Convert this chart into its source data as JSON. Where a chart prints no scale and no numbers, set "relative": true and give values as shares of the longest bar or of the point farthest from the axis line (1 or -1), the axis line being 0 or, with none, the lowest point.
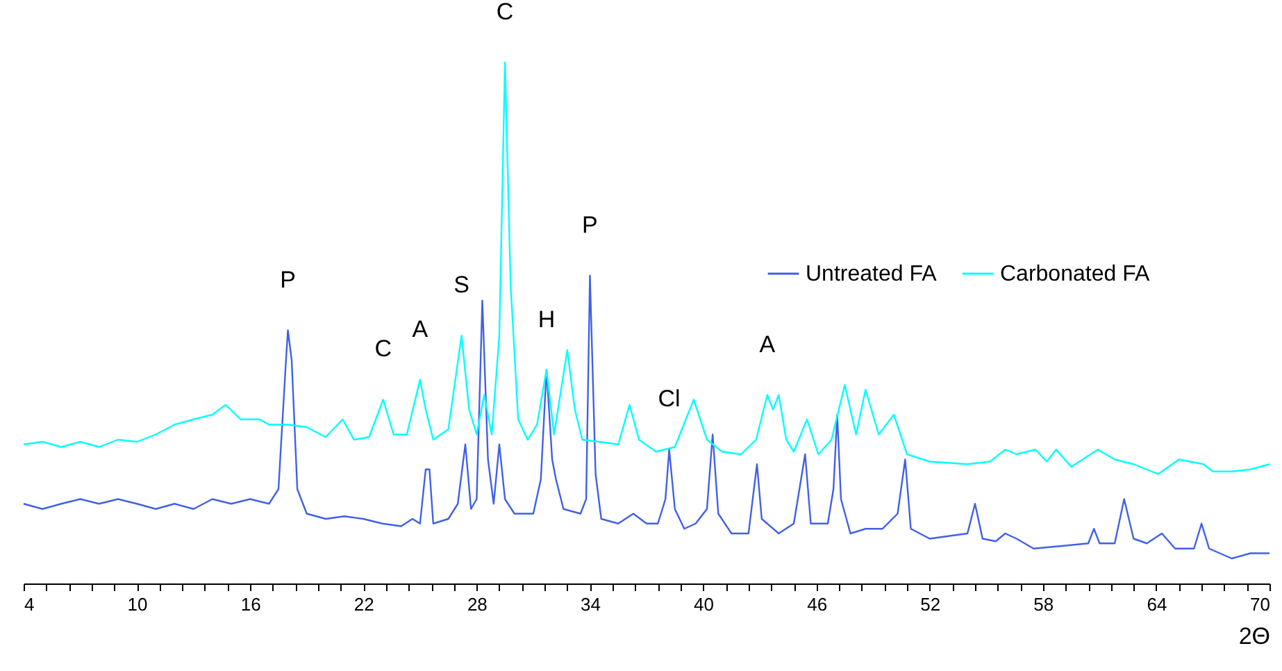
{
  "chart_data": {
    "type": "line",
    "relative": true,
    "xlabel": "2Θ",
    "xlim": [
      4,
      70
    ],
    "xticks": [
      4,
      {
        "value": 5.2,
        "label": null
      },
      {
        "value": 6.4,
        "label": null
      },
      {
        "value": 7.6,
        "label": null
      },
      {
        "value": 8.8,
        "label": null
      },
      10,
      {
        "value": 11.2,
        "label": null
      },
      {
        "value": 12.4,
        "label": null
      },
      {
        "value": 13.6,
        "label": null
      },
      {
        "value": 14.8,
        "label": null
      },
      16,
      {
        "value": 17.2,
        "label": null
      },
      {
        "value": 18.4,
        "label": null
      },
      {
        "value": 19.6,
        "label": null
      },
      {
        "value": 20.8,
        "label": null
      },
      22,
      {
        "value": 23.2,
        "label": null
      },
      {
        "value": 24.4,
        "label": null
      },
      {
        "value": 25.6,
        "label": null
      },
      {
        "value": 26.8,
        "label": null
      },
      28,
      {
        "value": 29.2,
        "label": null
      },
      {
        "value": 30.4,
        "label": null
      },
      {
        "value": 31.6,
        "label": null
      },
      {
        "value": 32.8,
        "label": null
      },
      34,
      {
        "value": 35.2,
        "label": null
      },
      {
        "value": 36.4,
        "label": null
      },
      {
        "value": 37.6,
        "label": null
      },
      {
        "value": 38.8,
        "label": null
      },
      40,
      {
        "value": 41.2,
        "label": null
      },
      {
        "value": 42.4,
        "label": null
      },
      {
        "value": 43.6,
        "label": null
      },
      {
        "value": 44.8,
        "label": null
      },
      46,
      {
        "value": 47.2,
        "label": null
      },
      {
        "value": 48.4,
        "label": null
      },
      {
        "value": 49.6,
        "label": null
      },
      {
        "value": 50.8,
        "label": null
      },
      52,
      {
        "value": 53.2,
        "label": null
      },
      {
        "value": 54.4,
        "label": null
      },
      {
        "value": 55.6,
        "label": null
      },
      {
        "value": 56.8,
        "label": null
      },
      58,
      {
        "value": 59.2,
        "label": null
      },
      {
        "value": 60.4,
        "label": null
      },
      {
        "value": 61.6,
        "label": null
      },
      {
        "value": 62.8,
        "label": null
      },
      64,
      {
        "value": 65.2,
        "label": null
      },
      {
        "value": 66.4,
        "label": null
      },
      {
        "value": 67.6,
        "label": null
      },
      {
        "value": 68.8,
        "label": null
      },
      70
    ],
    "legend": "top right",
    "grid": false,
    "tick_labels": "x",
    "series": [
      {
        "name": "Untreated FA",
        "color": "#4060e8",
        "x": [
          4,
          5,
          6,
          7,
          8,
          9,
          10,
          11,
          12,
          13,
          14,
          15,
          16,
          17,
          17.5,
          17.9,
          18.0,
          18.2,
          18.5,
          19,
          20,
          21,
          22,
          23,
          24,
          24.6,
          25.0,
          25.3,
          25.5,
          25.7,
          26.5,
          27.0,
          27.4,
          27.7,
          28.0,
          28.3,
          28.6,
          28.9,
          29.2,
          29.5,
          30.0,
          31.0,
          31.4,
          31.7,
          32.0,
          32.2,
          32.6,
          33.5,
          33.8,
          34.0,
          34.3,
          34.6,
          35.5,
          36.3,
          37.0,
          37.6,
          38.0,
          38.2,
          38.5,
          39.0,
          39.6,
          40.2,
          40.5,
          40.8,
          41.5,
          42.4,
          42.85,
          43.1,
          44.0,
          44.8,
          45.4,
          45.7,
          46.6,
          46.9,
          47.1,
          47.3,
          47.8,
          48.6,
          49.5,
          50.3,
          50.7,
          51.0,
          52.0,
          53.0,
          54.0,
          54.4,
          54.8,
          55.5,
          56.0,
          56.6,
          57.5,
          59.0,
          60.4,
          60.7,
          61.0,
          61.8,
          62.3,
          62.8,
          63.5,
          64.3,
          65.0,
          66.0,
          66.4,
          66.8,
          68.0,
          69.0,
          70.0
        ],
        "values": [
          0.153,
          0.143,
          0.153,
          0.162,
          0.153,
          0.162,
          0.153,
          0.143,
          0.153,
          0.143,
          0.162,
          0.153,
          0.162,
          0.153,
          0.181,
          0.429,
          0.486,
          0.429,
          0.181,
          0.134,
          0.124,
          0.129,
          0.124,
          0.115,
          0.11,
          0.124,
          0.115,
          0.219,
          0.219,
          0.115,
          0.124,
          0.153,
          0.267,
          0.143,
          0.162,
          0.543,
          0.238,
          0.153,
          0.267,
          0.162,
          0.134,
          0.134,
          0.2,
          0.41,
          0.238,
          0.2,
          0.143,
          0.134,
          0.162,
          0.591,
          0.21,
          0.124,
          0.115,
          0.134,
          0.115,
          0.115,
          0.162,
          0.257,
          0.143,
          0.105,
          0.115,
          0.143,
          0.286,
          0.134,
          0.096,
          0.096,
          0.229,
          0.124,
          0.096,
          0.115,
          0.248,
          0.115,
          0.115,
          0.181,
          0.324,
          0.162,
          0.096,
          0.105,
          0.105,
          0.134,
          0.238,
          0.105,
          0.086,
          0.091,
          0.096,
          0.153,
          0.086,
          0.081,
          0.096,
          0.086,
          0.067,
          0.072,
          0.077,
          0.105,
          0.077,
          0.077,
          0.162,
          0.086,
          0.077,
          0.096,
          0.067,
          0.067,
          0.115,
          0.067,
          0.048,
          0.058,
          0.058
        ]
      },
      {
        "name": "Carbonated FA",
        "color": "#00ffff",
        "x": [
          4,
          5,
          6,
          7,
          8,
          9,
          10,
          11,
          12,
          13,
          14,
          14.7,
          15.5,
          16.5,
          17,
          18,
          19,
          20,
          20.9,
          21.5,
          22.3,
          23.05,
          23.6,
          24.3,
          25.0,
          25.3,
          25.7,
          26.5,
          27.2,
          27.6,
          28.0,
          28.4,
          28.8,
          29.2,
          29.5,
          29.8,
          30.2,
          30.7,
          31.2,
          31.7,
          32.1,
          32.8,
          33.2,
          33.6,
          34.5,
          35.5,
          36.1,
          36.6,
          37.5,
          38.5,
          39.5,
          40.2,
          41.0,
          42.0,
          42.8,
          43.4,
          43.7,
          44.0,
          44.4,
          44.8,
          45.5,
          46.1,
          46.8,
          47.5,
          48.1,
          48.6,
          49.3,
          50.1,
          50.8,
          52,
          54,
          55.2,
          56.0,
          56.6,
          57.6,
          58.2,
          58.7,
          59.5,
          60.9,
          61.8,
          62.8,
          64.1,
          65.2,
          66.5,
          67.0,
          68.0,
          69.0,
          70.0
        ],
        "values": [
          0.267,
          0.272,
          0.262,
          0.272,
          0.262,
          0.276,
          0.272,
          0.286,
          0.305,
          0.315,
          0.324,
          0.343,
          0.315,
          0.315,
          0.305,
          0.305,
          0.3,
          0.281,
          0.315,
          0.276,
          0.281,
          0.353,
          0.286,
          0.286,
          0.391,
          0.334,
          0.276,
          0.296,
          0.476,
          0.334,
          0.286,
          0.362,
          0.286,
          0.476,
          1.0,
          0.572,
          0.315,
          0.276,
          0.305,
          0.41,
          0.286,
          0.448,
          0.334,
          0.276,
          0.272,
          0.267,
          0.343,
          0.276,
          0.253,
          0.262,
          0.353,
          0.276,
          0.253,
          0.248,
          0.276,
          0.362,
          0.334,
          0.362,
          0.276,
          0.253,
          0.315,
          0.248,
          0.276,
          0.381,
          0.286,
          0.372,
          0.286,
          0.324,
          0.248,
          0.234,
          0.229,
          0.234,
          0.257,
          0.248,
          0.257,
          0.234,
          0.257,
          0.224,
          0.257,
          0.238,
          0.229,
          0.21,
          0.238,
          0.229,
          0.215,
          0.215,
          0.219,
          0.229
        ]
      }
    ],
    "annotations": [
      {
        "text": "P",
        "x": 18.0,
        "y": 0.486
      },
      {
        "text": "C",
        "x": 23.05,
        "y": 0.353
      },
      {
        "text": "A",
        "x": 25.0,
        "y": 0.391
      },
      {
        "text": "S",
        "x": 27.2,
        "y": 0.476
      },
      {
        "text": "C",
        "x": 29.5,
        "y": 1.0
      },
      {
        "text": "H",
        "x": 31.7,
        "y": 0.41
      },
      {
        "text": "P",
        "x": 34.0,
        "y": 0.591
      },
      {
        "text": "Cl",
        "x": 38.2,
        "y": 0.257
      },
      {
        "text": "A",
        "x": 43.4,
        "y": 0.362
      }
    ]
  }
}
